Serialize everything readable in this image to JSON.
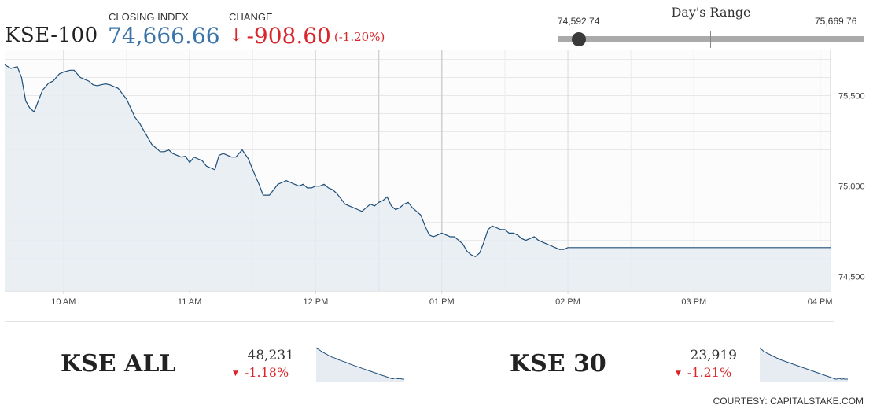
{
  "header": {
    "index_name": "KSE-100",
    "closing_label": "CLOSING INDEX",
    "closing_value": "74,666.66",
    "change_label": "CHANGE",
    "change_arrow": "↓",
    "change_value": "-908.60",
    "change_percent": "(-1.20%)"
  },
  "days_range": {
    "title": "Day's Range",
    "low": "74,592.74",
    "high": "75,669.76",
    "current_fraction": 0.069
  },
  "colors": {
    "accent_blue": "#3a74a8",
    "negative_red": "#d9262b",
    "line": "#1f4e79",
    "area_fill": "#e6ecf2"
  },
  "chart_data": [
    {
      "type": "area",
      "title": "KSE-100",
      "x_ticks": [
        "10 AM",
        "11 AM",
        "12 PM",
        "01 PM",
        "02 PM",
        "03 PM",
        "04 PM"
      ],
      "y_ticks": [
        "74,500",
        "75,000",
        "75,500"
      ],
      "y_tick_values": [
        74500,
        75000,
        75500
      ],
      "xlim": [
        "09:32",
        "16:05"
      ],
      "ylim": [
        74420,
        75750
      ],
      "grid": true,
      "series": [
        {
          "x": [
            "09:32",
            "09:35",
            "09:38",
            "09:40",
            "09:42",
            "09:44",
            "09:46",
            "09:48",
            "09:50",
            "09:53",
            "09:55",
            "09:58",
            "10:00",
            "10:03",
            "10:05",
            "10:08",
            "10:10",
            "10:12",
            "10:14",
            "10:16",
            "10:18",
            "10:20",
            "10:22",
            "10:24",
            "10:26",
            "10:28",
            "10:30",
            "10:32",
            "10:34",
            "10:36",
            "10:38",
            "10:40",
            "10:42",
            "10:44",
            "10:46",
            "10:48",
            "10:50",
            "10:52",
            "10:54",
            "10:56",
            "10:58",
            "11:00",
            "11:02",
            "11:04",
            "11:06",
            "11:08",
            "11:10",
            "11:12",
            "11:14",
            "11:16",
            "11:18",
            "11:20",
            "11:22",
            "11:25",
            "11:28",
            "11:30",
            "11:33",
            "11:35",
            "11:38",
            "11:40",
            "11:42",
            "11:44",
            "11:46",
            "11:48",
            "11:50",
            "11:52",
            "11:54",
            "11:56",
            "11:58",
            "12:00",
            "12:02",
            "12:04",
            "12:06",
            "12:08",
            "12:10",
            "12:12",
            "12:14",
            "12:16",
            "12:18",
            "12:20",
            "12:22",
            "12:24",
            "12:26",
            "12:28",
            "12:30",
            "12:32",
            "12:34",
            "12:36",
            "12:38",
            "12:40",
            "12:42",
            "12:44",
            "12:46",
            "12:48",
            "12:50",
            "12:52",
            "12:54",
            "12:56",
            "12:58",
            "13:00",
            "13:02",
            "13:04",
            "13:06",
            "13:08",
            "13:10",
            "13:12",
            "13:14",
            "13:16",
            "13:18",
            "13:20",
            "13:22",
            "13:24",
            "13:26",
            "13:28",
            "13:30",
            "13:32",
            "13:34",
            "13:36",
            "13:38",
            "13:40",
            "13:42",
            "13:44",
            "13:46",
            "13:48",
            "13:50",
            "13:52",
            "13:54",
            "13:56",
            "13:58",
            "14:00",
            "14:02",
            "14:04",
            "14:06",
            "14:08",
            "14:10",
            "14:12",
            "14:14",
            "14:16",
            "14:18",
            "14:20",
            "14:22",
            "14:24",
            "14:26",
            "14:28",
            "14:30",
            "14:32",
            "14:34",
            "14:36",
            "14:38",
            "14:40",
            "14:42",
            "14:44",
            "14:46",
            "14:48",
            "14:50",
            "14:52",
            "14:54",
            "14:56",
            "14:58",
            "15:00",
            "15:02",
            "15:04",
            "15:06",
            "15:08",
            "15:10",
            "15:12",
            "15:14",
            "15:16",
            "15:18",
            "15:20",
            "15:22",
            "15:25",
            "15:28",
            "15:30",
            "15:35",
            "15:40",
            "15:45",
            "15:50",
            "15:55",
            "16:00",
            "16:05"
          ],
          "y": [
            75670,
            75650,
            75660,
            75600,
            75470,
            75430,
            75410,
            75470,
            75530,
            75570,
            75580,
            75620,
            75630,
            75640,
            75640,
            75600,
            75590,
            75580,
            75560,
            75555,
            75560,
            75565,
            75560,
            75550,
            75540,
            75510,
            75480,
            75430,
            75380,
            75350,
            75310,
            75270,
            75230,
            75210,
            75190,
            75190,
            75200,
            75180,
            75170,
            75160,
            75165,
            75130,
            75160,
            75150,
            75140,
            75110,
            75100,
            75090,
            75170,
            75180,
            75170,
            75160,
            75160,
            75200,
            75150,
            75090,
            75010,
            74950,
            74950,
            74980,
            75010,
            75020,
            75030,
            75020,
            75010,
            75000,
            75010,
            74990,
            74990,
            75000,
            75000,
            75010,
            74990,
            74980,
            74960,
            74930,
            74900,
            74890,
            74880,
            74870,
            74860,
            74880,
            74900,
            74890,
            74910,
            74920,
            74940,
            74890,
            74870,
            74880,
            74900,
            74910,
            74880,
            74860,
            74840,
            74780,
            74730,
            74720,
            74730,
            74740,
            74730,
            74720,
            74720,
            74700,
            74680,
            74640,
            74620,
            74610,
            74630,
            74690,
            74760,
            74780,
            74770,
            74760,
            74760,
            74740,
            74740,
            74730,
            74710,
            74700,
            74710,
            74720,
            74700,
            74690,
            74680,
            74670,
            74660,
            74650,
            74650,
            74660,
            74660,
            74660,
            74660,
            74660,
            74660,
            74660,
            74660,
            74660,
            74660,
            74660,
            74660,
            74660,
            74660,
            74660,
            74660,
            74660,
            74660,
            74660,
            74660,
            74660,
            74660,
            74660,
            74660,
            74660,
            74660,
            74660,
            74660,
            74660,
            74660,
            74660,
            74660,
            74660,
            74660,
            74660,
            74660,
            74660,
            74660,
            74660,
            74660,
            74660,
            74660,
            74660,
            74660,
            74660,
            74660,
            74660,
            74660,
            74660,
            74660,
            74660,
            74660
          ]
        }
      ]
    },
    {
      "type": "area",
      "title": "KSE ALL",
      "series": [
        {
          "values": [
            100,
            97,
            96,
            94,
            92,
            90,
            88,
            87,
            85,
            84,
            82,
            80,
            79,
            78,
            76,
            75,
            74,
            73,
            72,
            70,
            69,
            68,
            67,
            66,
            65,
            64,
            63,
            62,
            61,
            60,
            58,
            57,
            56,
            55,
            54,
            53,
            52,
            51,
            50,
            49,
            48,
            47,
            46,
            45,
            44,
            43,
            42,
            41,
            40,
            39,
            38,
            37,
            36,
            35,
            34,
            33,
            32,
            31,
            30,
            29,
            28,
            27,
            26,
            25,
            24,
            23,
            22,
            21,
            20,
            20,
            21,
            22,
            21,
            20,
            20,
            21,
            20,
            19,
            19,
            19
          ]
        }
      ]
    },
    {
      "type": "area",
      "title": "KSE 30",
      "series": [
        {
          "values": [
            100,
            96,
            95,
            92,
            90,
            89,
            87,
            85,
            84,
            83,
            81,
            80,
            78,
            77,
            76,
            74,
            73,
            72,
            70,
            69,
            68,
            67,
            66,
            65,
            64,
            63,
            62,
            61,
            60,
            59,
            58,
            57,
            56,
            55,
            54,
            53,
            52,
            51,
            50,
            49,
            48,
            47,
            46,
            45,
            44,
            43,
            42,
            41,
            40,
            39,
            38,
            37,
            36,
            35,
            34,
            33,
            32,
            31,
            30,
            29,
            28,
            27,
            26,
            25,
            24,
            23,
            22,
            21,
            20,
            20,
            21,
            22,
            21,
            20,
            20,
            21,
            20,
            20,
            20,
            20
          ]
        }
      ]
    }
  ],
  "bottom": [
    {
      "name": "KSE ALL",
      "value": "48,231",
      "change": "-1.18%"
    },
    {
      "name": "KSE 30",
      "value": "23,919",
      "change": "-1.21%"
    }
  ],
  "courtesy": "COURTESY: CAPITALSTAKE.COM"
}
